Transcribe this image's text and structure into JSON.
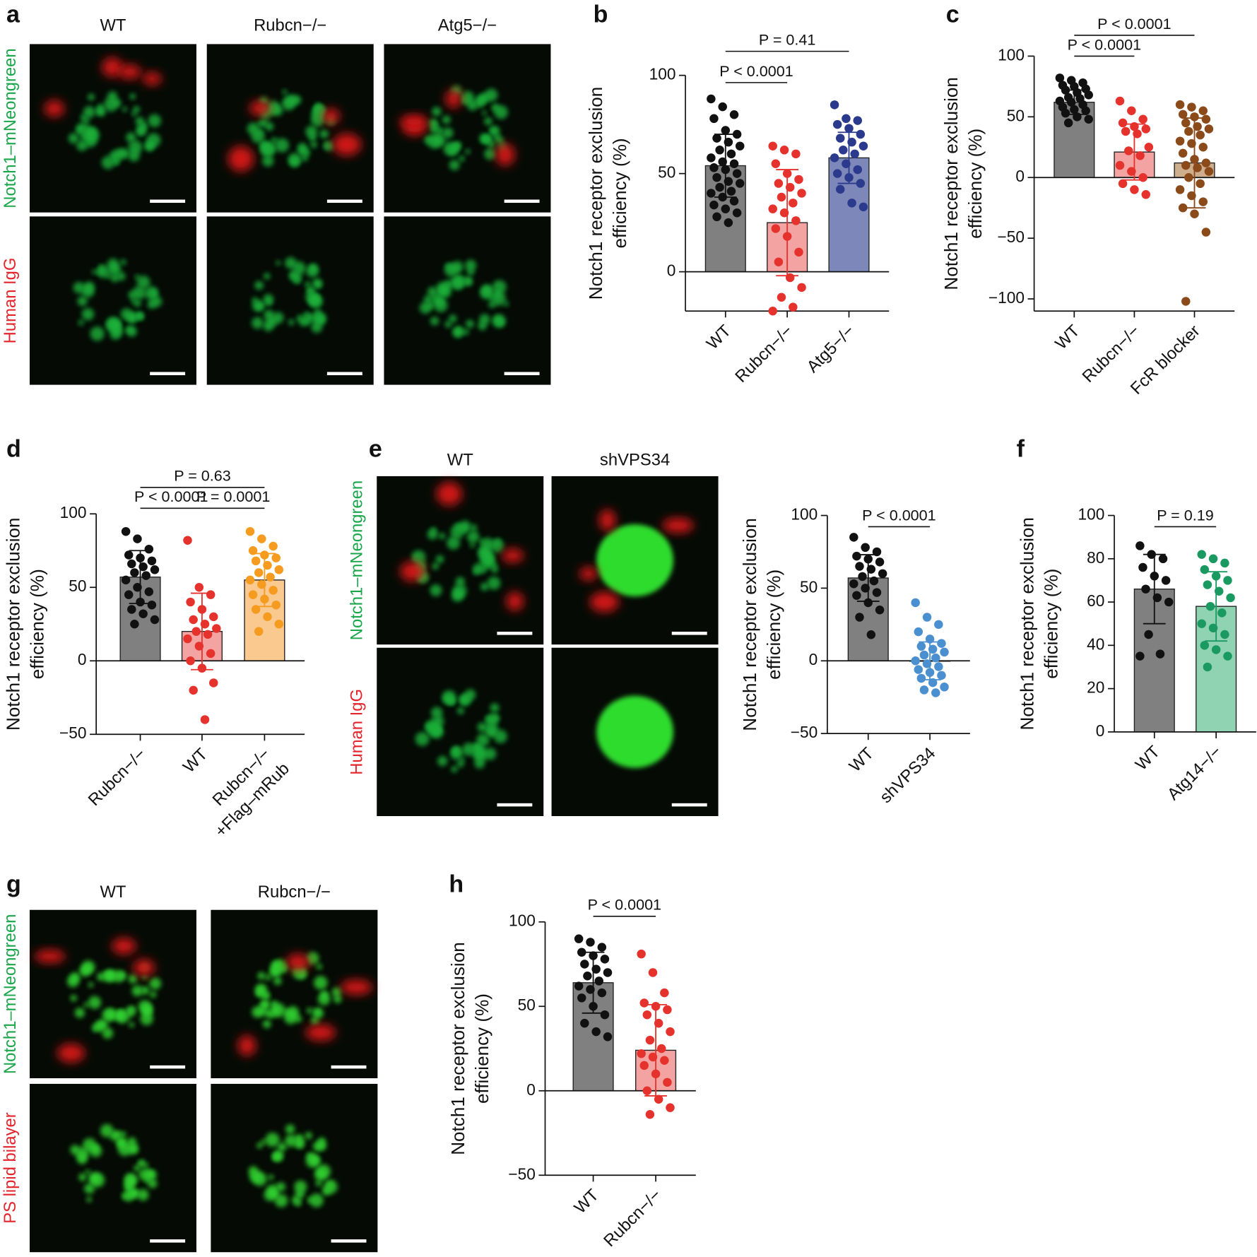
{
  "images": [
    {
      "label": "a",
      "columns": [
        "WT",
        "Rubcn−/−",
        "Atg5−/−"
      ],
      "rows": [
        "Notch1–mNeongreen",
        "Human IgG"
      ]
    },
    {
      "label": "e",
      "columns": [
        "WT",
        "shVPS34"
      ],
      "rows": [
        "Notch1–mNeongreen",
        "Human IgG"
      ]
    },
    {
      "label": "g",
      "columns": [
        "WT",
        "Rubcn−/−"
      ],
      "rows": [
        "Notch1–mNeongreen",
        "PS lipid bilayer"
      ]
    }
  ],
  "chart_data": [
    {
      "type": "bar",
      "label": "b",
      "ylabel": [
        "Notch1 receptor exclusion",
        "efficiency (%)"
      ],
      "categories": [
        "WT",
        "Rubcn−/−",
        "Atg5−/−"
      ],
      "values": [
        54,
        25,
        58
      ],
      "errors": [
        16,
        27,
        13
      ],
      "bar_colors": [
        "#808080",
        "#f4a3a3",
        "#7d87b9"
      ],
      "point_colors": [
        "#111111",
        "#e6322c",
        "#2b3a8c"
      ],
      "points": [
        [
          88,
          84,
          80,
          78,
          72,
          70,
          68,
          66,
          64,
          62,
          60,
          58,
          56,
          55,
          53,
          52,
          50,
          48,
          46,
          45,
          43,
          41,
          40,
          38,
          36,
          34,
          32,
          30,
          28,
          25
        ],
        [
          64,
          62,
          60,
          55,
          50,
          47,
          45,
          43,
          40,
          38,
          35,
          32,
          30,
          26,
          22,
          18,
          10,
          5,
          -3,
          -8,
          -13,
          -18,
          -20
        ],
        [
          85,
          78,
          77,
          75,
          73,
          70,
          68,
          66,
          64,
          62,
          60,
          58,
          55,
          52,
          50,
          48,
          45,
          42,
          35,
          33
        ]
      ],
      "comparisons": [
        "P < 0.0001",
        "P = 0.41"
      ],
      "ylim": [
        -20,
        100
      ],
      "yticks": [
        0,
        50,
        100
      ]
    },
    {
      "type": "bar",
      "label": "c",
      "ylabel": [
        "Notch1 receptor exclusion",
        "efficiency (%)"
      ],
      "categories": [
        "WT",
        "Rubcn−/−",
        "FcR blocker"
      ],
      "values": [
        62,
        21,
        12
      ],
      "errors": [
        10,
        23,
        37
      ],
      "bar_colors": [
        "#808080",
        "#f4a3a3",
        "#cfae8e"
      ],
      "point_colors": [
        "#111111",
        "#e6322c",
        "#8b4a1a"
      ],
      "points": [
        [
          82,
          80,
          78,
          76,
          75,
          73,
          72,
          70,
          68,
          66,
          65,
          63,
          62,
          60,
          58,
          56,
          55,
          53,
          50,
          48,
          45
        ],
        [
          63,
          55,
          48,
          45,
          42,
          40,
          38,
          36,
          25,
          22,
          18,
          10,
          5,
          0,
          -5,
          -10,
          -14
        ],
        [
          60,
          58,
          55,
          52,
          50,
          48,
          45,
          42,
          40,
          38,
          35,
          30,
          28,
          25,
          20,
          15,
          12,
          10,
          8,
          5,
          0,
          -5,
          -10,
          -15,
          -20,
          -25,
          -30,
          -45,
          -102
        ]
      ],
      "comparisons": [
        "P < 0.0001",
        "P < 0.0001"
      ],
      "ylim": [
        -110,
        100
      ],
      "yticks": [
        {
          "value": -100,
          "label": "−100"
        },
        {
          "value": -50,
          "label": "−50"
        },
        0,
        50,
        100
      ]
    },
    {
      "type": "bar",
      "label": "d",
      "ylabel": [
        "Notch1 receptor exclusion",
        "efficiency (%)"
      ],
      "categories": [
        [
          "Rubcn−/−"
        ],
        [
          "WT"
        ],
        [
          "Rubcn−/−",
          "+Flag–mRub"
        ]
      ],
      "values": [
        57,
        20,
        55
      ],
      "errors": [
        18,
        26,
        18
      ],
      "bar_colors": [
        "#808080",
        "#f4a3a3",
        "#f9c990"
      ],
      "point_colors": [
        "#111111",
        "#e6322c",
        "#f59b1f"
      ],
      "points": [
        [
          88,
          83,
          76,
          72,
          70,
          68,
          66,
          64,
          62,
          60,
          58,
          55,
          50,
          47,
          45,
          40,
          38,
          35,
          32,
          28,
          25
        ],
        [
          82,
          50,
          45,
          40,
          35,
          30,
          28,
          25,
          22,
          20,
          18,
          15,
          10,
          5,
          0,
          -5,
          -15,
          -20,
          -40
        ],
        [
          88,
          83,
          78,
          75,
          72,
          70,
          68,
          65,
          62,
          60,
          57,
          55,
          52,
          48,
          45,
          42,
          38,
          35,
          30,
          25,
          20
        ]
      ],
      "comparisons": [
        "P < 0.0001",
        "P = 0.0001",
        "P = 0.63"
      ],
      "ylim": [
        -50,
        100
      ],
      "yticks": [
        {
          "value": -50,
          "label": "−50"
        },
        0,
        50,
        100
      ]
    },
    {
      "type": "bar",
      "label": "",
      "ylabel": [
        "Notch1 receptor exclusion",
        "efficiency (%)"
      ],
      "categories": [
        "WT",
        "shVPS34"
      ],
      "values": [
        57,
        0
      ],
      "errors": [
        16,
        13
      ],
      "bar_colors": [
        "#808080",
        "#9cc3e8"
      ],
      "point_colors": [
        "#111111",
        "#4a90d0"
      ],
      "points": [
        [
          85,
          78,
          75,
          72,
          70,
          68,
          65,
          63,
          60,
          58,
          55,
          53,
          50,
          47,
          45,
          40,
          35,
          30,
          18
        ],
        [
          40,
          30,
          25,
          20,
          15,
          12,
          10,
          8,
          6,
          4,
          2,
          0,
          -2,
          -4,
          -6,
          -8,
          -10,
          -12,
          -15,
          -18,
          -20,
          -22
        ]
      ],
      "comparisons": [
        "P < 0.0001"
      ],
      "ylim": [
        -50,
        100
      ],
      "yticks": [
        {
          "value": -50,
          "label": "−50"
        },
        0,
        50,
        100
      ]
    },
    {
      "type": "bar",
      "label": "f",
      "ylabel": [
        "Notch1 receptor exclusion",
        "efficiency (%)"
      ],
      "categories": [
        "WT",
        "Atg14−/−"
      ],
      "values": [
        66,
        58
      ],
      "errors": [
        16,
        16
      ],
      "bar_colors": [
        "#808080",
        "#8fd3b2"
      ],
      "point_colors": [
        "#111111",
        "#1a9a60"
      ],
      "points": [
        [
          86,
          82,
          80,
          76,
          72,
          70,
          66,
          62,
          60,
          45,
          36,
          35
        ],
        [
          82,
          80,
          78,
          75,
          72,
          70,
          68,
          65,
          62,
          58,
          55,
          50,
          48,
          45,
          40,
          38,
          35,
          30
        ]
      ],
      "comparisons": [
        "P = 0.19"
      ],
      "ylim": [
        0,
        100
      ],
      "yticks": [
        0,
        20,
        40,
        60,
        80,
        100
      ]
    },
    {
      "type": "bar",
      "label": "h",
      "ylabel": [
        "Notch1 receptor exclusion",
        "efficiency (%)"
      ],
      "categories": [
        "WT",
        "Rubcn−/−"
      ],
      "values": [
        64,
        24
      ],
      "errors": [
        18,
        27
      ],
      "bar_colors": [
        "#808080",
        "#f4a3a3"
      ],
      "point_colors": [
        "#111111",
        "#e6322c"
      ],
      "points": [
        [
          90,
          88,
          85,
          82,
          80,
          78,
          75,
          72,
          70,
          68,
          65,
          62,
          60,
          58,
          55,
          50,
          45,
          40,
          35,
          32
        ],
        [
          81,
          70,
          58,
          52,
          50,
          48,
          45,
          40,
          35,
          30,
          25,
          22,
          20,
          18,
          15,
          10,
          5,
          0,
          -5,
          -10,
          -14
        ]
      ],
      "comparisons": [
        "P < 0.0001"
      ],
      "ylim": [
        -50,
        100
      ],
      "yticks": [
        {
          "value": -50,
          "label": "−50"
        },
        0,
        50,
        100
      ]
    }
  ]
}
